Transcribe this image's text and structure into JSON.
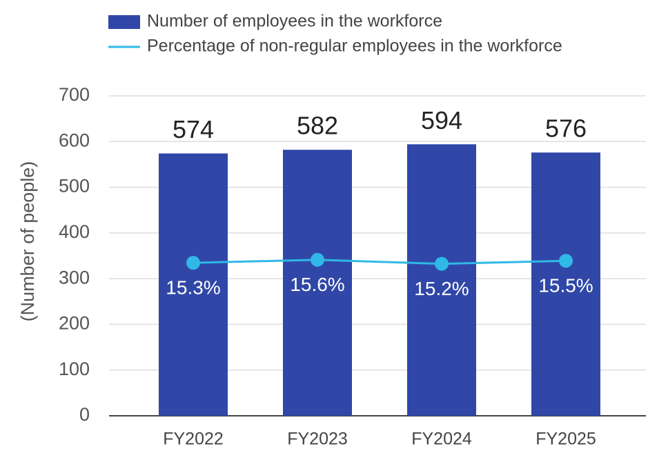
{
  "chart_data": {
    "type": "bar",
    "y_label": "(Number of people)",
    "categories": [
      "FY2022",
      "FY2023",
      "FY2024",
      "FY2025"
    ],
    "ylim": [
      0,
      700
    ],
    "yticks": [
      0,
      100,
      200,
      300,
      400,
      500,
      600,
      700
    ],
    "grid": true,
    "y2lim": [
      0,
      32
    ],
    "series": [
      {
        "name": "Number of employees in the workforce",
        "type": "bar",
        "color": "#3047a8",
        "values": [
          574,
          582,
          594,
          576
        ]
      },
      {
        "name": "Percentage of non-regular employees in the workforce",
        "type": "line",
        "axis": "y2",
        "color": "#30b8e6",
        "values": [
          15.3,
          15.6,
          15.2,
          15.5
        ],
        "value_labels": [
          "15.3%",
          "15.6%",
          "15.2%",
          "15.5%"
        ]
      }
    ]
  }
}
